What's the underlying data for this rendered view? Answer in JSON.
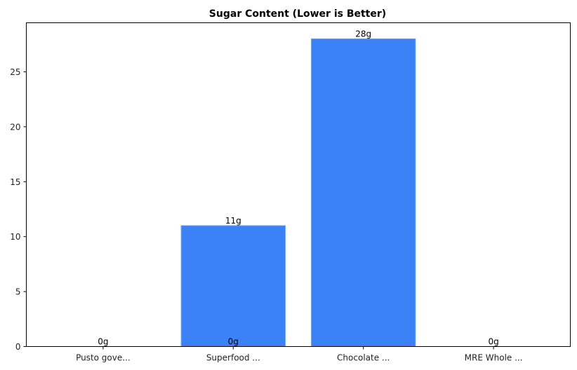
{
  "chart_data": {
    "type": "bar",
    "title": "Sugar Content (Lower is Better)",
    "xlabel": "",
    "ylabel": "",
    "categories": [
      "Pusto gove...",
      "Superfood ...",
      "Chocolate ...",
      "MRE Whole ..."
    ],
    "values": [
      0,
      11,
      28,
      0
    ],
    "value_labels": [
      "0g",
      "11g",
      "28g",
      "0g"
    ],
    "baseline_labels": [
      "0g",
      "0g",
      "",
      "0g"
    ],
    "ylim": [
      0,
      29.46
    ],
    "yticks": [
      0,
      5,
      10,
      15,
      20,
      25
    ],
    "grid": false,
    "legend": null,
    "bar_color": "#3b82f6",
    "bar_edge_color": "#60a5fa"
  }
}
